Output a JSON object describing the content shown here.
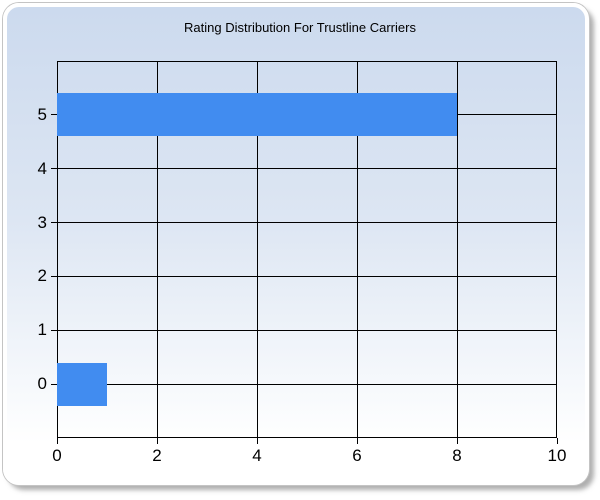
{
  "chart_data": {
    "type": "bar",
    "orientation": "horizontal",
    "title": "Rating Distribution For Trustline Carriers",
    "categories": [
      0,
      1,
      2,
      3,
      4,
      5
    ],
    "values": [
      1,
      0,
      0,
      0,
      0,
      8
    ],
    "xlabel": "",
    "ylabel": "",
    "xlim": [
      0,
      10
    ],
    "ylim": [
      -1,
      6
    ],
    "x_ticks": [
      0,
      2,
      4,
      6,
      8,
      10
    ],
    "y_ticks": [
      0,
      1,
      2,
      3,
      4,
      5
    ],
    "grid": true,
    "legend": false,
    "bar_relative_thickness": 0.8,
    "bar_color": "#418CF0",
    "axis_color": "#000000",
    "plot_background_gradient": [
      "#CCDAEE",
      "#FFFFFF"
    ]
  }
}
